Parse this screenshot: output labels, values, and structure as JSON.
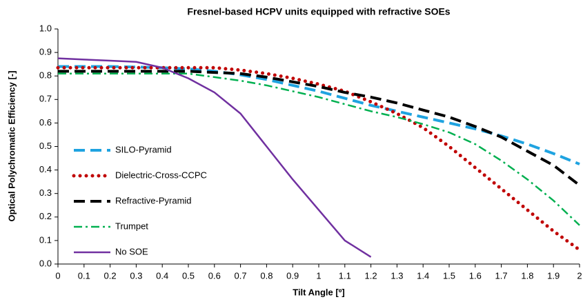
{
  "chart_data": {
    "type": "line",
    "title": "Fresnel-based HCPV units equipped with refractive SOEs",
    "xlabel": "Tilt Angle [º]",
    "ylabel": "Optical  Polychromatic Efficiency [-]",
    "x": [
      0,
      0.1,
      0.2,
      0.3,
      0.4,
      0.5,
      0.6,
      0.7,
      0.8,
      0.9,
      1,
      1.1,
      1.2,
      1.3,
      1.4,
      1.5,
      1.6,
      1.7,
      1.8,
      1.9,
      2
    ],
    "series": [
      {
        "name": "SILO-Pyramid",
        "color": "#1fa3e0",
        "style": "dashed",
        "values": [
          0.84,
          0.84,
          0.84,
          0.838,
          0.835,
          0.83,
          0.82,
          0.805,
          0.785,
          0.76,
          0.735,
          0.705,
          0.675,
          0.65,
          0.625,
          0.6,
          0.575,
          0.545,
          0.51,
          0.47,
          0.425
        ]
      },
      {
        "name": "Dielectric-Cross-CCPC",
        "color": "#c00000",
        "style": "dotted",
        "values": [
          0.835,
          0.835,
          0.835,
          0.835,
          0.835,
          0.835,
          0.835,
          0.825,
          0.81,
          0.79,
          0.765,
          0.735,
          0.69,
          0.64,
          0.58,
          0.5,
          0.41,
          0.32,
          0.23,
          0.14,
          0.06
        ]
      },
      {
        "name": "Refractive-Pyramid",
        "color": "#000000",
        "style": "dashed",
        "values": [
          0.82,
          0.82,
          0.82,
          0.82,
          0.82,
          0.82,
          0.815,
          0.81,
          0.795,
          0.775,
          0.755,
          0.73,
          0.71,
          0.685,
          0.655,
          0.625,
          0.585,
          0.54,
          0.48,
          0.42,
          0.335
        ]
      },
      {
        "name": "Trumpet",
        "color": "#00b050",
        "style": "dashdot",
        "values": [
          0.81,
          0.81,
          0.81,
          0.81,
          0.81,
          0.81,
          0.795,
          0.78,
          0.76,
          0.735,
          0.71,
          0.68,
          0.65,
          0.625,
          0.595,
          0.56,
          0.51,
          0.44,
          0.36,
          0.27,
          0.165
        ]
      },
      {
        "name": "No SOE",
        "color": "#7030a0",
        "style": "solid",
        "values": [
          0.875,
          0.87,
          0.865,
          0.86,
          0.835,
          0.79,
          0.73,
          0.64,
          0.5,
          0.36,
          0.23,
          0.1,
          0.03,
          null,
          null,
          null,
          null,
          null,
          null,
          null,
          null
        ]
      }
    ],
    "xlim": [
      0,
      2
    ],
    "xticks": [
      0,
      0.1,
      0.2,
      0.3,
      0.4,
      0.5,
      0.6,
      0.7,
      0.8,
      0.9,
      1,
      1.1,
      1.2,
      1.3,
      1.4,
      1.5,
      1.6,
      1.7,
      1.8,
      1.9,
      2
    ],
    "ylim": [
      0,
      1
    ],
    "yticks": [
      {
        "value": 0,
        "label": "0.0"
      },
      0.1,
      0.2,
      0.3,
      0.4,
      0.5,
      0.6,
      0.7,
      0.8,
      0.9,
      {
        "value": 1,
        "label": "1.0"
      }
    ],
    "legend": "left"
  }
}
